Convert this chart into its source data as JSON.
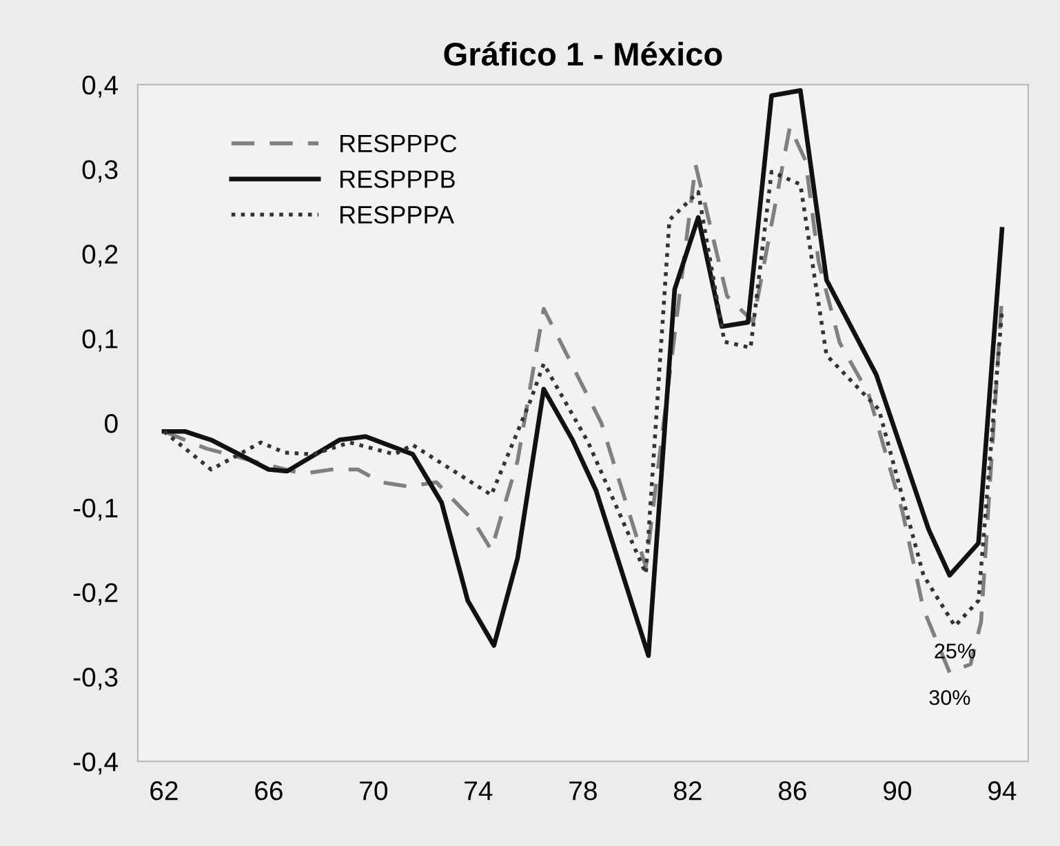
{
  "chart_data": {
    "type": "line",
    "title": "Gráfico 1 - México",
    "xlim": [
      61,
      95
    ],
    "xticks": [
      62,
      66,
      70,
      74,
      78,
      82,
      86,
      90,
      94
    ],
    "ylim": [
      -0.4,
      0.4
    ],
    "yticks": [
      {
        "value": -0.4,
        "label": "-0,4"
      },
      {
        "value": -0.3,
        "label": "-0,3"
      },
      {
        "value": -0.2,
        "label": "-0,2"
      },
      {
        "value": -0.1,
        "label": "-0,1"
      },
      {
        "value": 0,
        "label": "0"
      },
      {
        "value": 0.1,
        "label": "0,1"
      },
      {
        "value": 0.2,
        "label": "0,2"
      },
      {
        "value": 0.3,
        "label": "0,3"
      },
      {
        "value": 0.4,
        "label": "0,4"
      }
    ],
    "grid": false,
    "legend": "top left",
    "marker": "none",
    "series": [
      {
        "name": "RESPPPC",
        "color": "#808080",
        "line_style": "dashed",
        "x": [
          62.0,
          63.6,
          66.0,
          67.3,
          68.4,
          69.4,
          70.3,
          71.3,
          72.4,
          73.8,
          74.5,
          75.5,
          76.5,
          78.7,
          80.4,
          82.3,
          83.5,
          84.5,
          85.9,
          86.5,
          87.0,
          87.8,
          88.9,
          90.2,
          91.0,
          92.0,
          92.8,
          93.2,
          94.0
        ],
        "values": [
          -0.01,
          -0.03,
          -0.05,
          -0.06,
          -0.055,
          -0.055,
          -0.07,
          -0.075,
          -0.07,
          -0.115,
          -0.15,
          -0.045,
          0.135,
          0.0,
          -0.17,
          0.305,
          0.15,
          0.12,
          0.35,
          0.31,
          0.19,
          0.095,
          0.035,
          -0.105,
          -0.22,
          -0.295,
          -0.285,
          -0.235,
          0.15
        ]
      },
      {
        "name": "RESPPPB",
        "color": "#111111",
        "line_style": "solid",
        "x": [
          62.0,
          62.8,
          63.8,
          66.0,
          66.7,
          68.7,
          69.7,
          71.5,
          72.6,
          73.6,
          74.6,
          75.5,
          76.5,
          77.6,
          78.5,
          80.5,
          81.5,
          82.4,
          83.3,
          84.3,
          85.2,
          86.3,
          87.3,
          89.2,
          91.2,
          92.0,
          93.1,
          94.0
        ],
        "values": [
          -0.01,
          -0.01,
          -0.02,
          -0.055,
          -0.057,
          -0.02,
          -0.016,
          -0.037,
          -0.094,
          -0.21,
          -0.263,
          -0.16,
          0.04,
          -0.02,
          -0.08,
          -0.275,
          0.158,
          0.243,
          0.114,
          0.119,
          0.387,
          0.393,
          0.169,
          0.057,
          -0.126,
          -0.18,
          -0.142,
          0.229
        ]
      },
      {
        "name": "RESPPPA",
        "color": "#333333",
        "line_style": "dotted",
        "x": [
          62.0,
          63.8,
          65.7,
          66.6,
          67.7,
          69.1,
          70.8,
          71.5,
          74.5,
          76.0,
          76.5,
          78.2,
          80.4,
          81.3,
          82.4,
          83.4,
          84.4,
          85.2,
          86.3,
          87.3,
          89.3,
          91.0,
          92.2,
          93.1,
          94.0
        ],
        "values": [
          -0.01,
          -0.055,
          -0.023,
          -0.035,
          -0.037,
          -0.023,
          -0.037,
          -0.026,
          -0.085,
          0.027,
          0.07,
          -0.023,
          -0.178,
          0.24,
          0.273,
          0.096,
          0.089,
          0.297,
          0.282,
          0.08,
          0.016,
          -0.18,
          -0.24,
          -0.21,
          0.133
        ]
      }
    ],
    "annotations": [
      {
        "text": "25%",
        "x": 92.2,
        "y": -0.24
      },
      {
        "text": "30%",
        "x": 92.0,
        "y": -0.295
      }
    ]
  }
}
